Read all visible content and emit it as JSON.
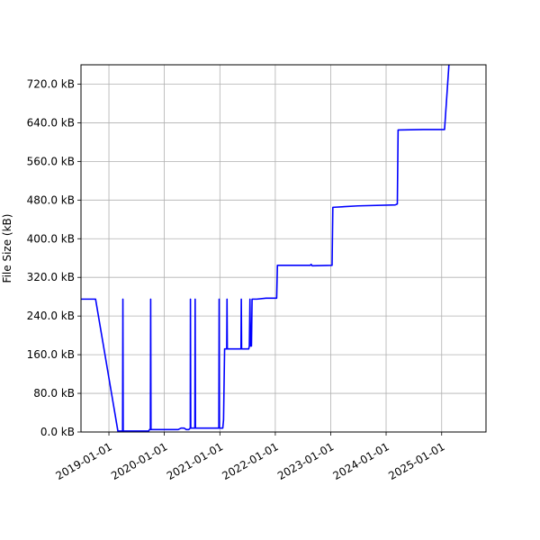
{
  "chart_data": {
    "type": "line",
    "title": "",
    "xlabel": "",
    "ylabel": "File Size (kB)",
    "grid": true,
    "xlim": [
      "2018-07-01",
      "2025-10-20"
    ],
    "ylim": [
      0,
      760
    ],
    "x_ticks": [
      "2019-01-01",
      "2020-01-01",
      "2021-01-01",
      "2022-01-01",
      "2023-01-01",
      "2024-01-01",
      "2025-01-01"
    ],
    "y_ticks": [
      {
        "value": 0,
        "label": "0.0 kB"
      },
      {
        "value": 80,
        "label": "80.0 kB"
      },
      {
        "value": 160,
        "label": "160.0 kB"
      },
      {
        "value": 240,
        "label": "240.0 kB"
      },
      {
        "value": 320,
        "label": "320.0 kB"
      },
      {
        "value": 400,
        "label": "400.0 kB"
      },
      {
        "value": 480,
        "label": "480.0 kB"
      },
      {
        "value": 560,
        "label": "560.0 kB"
      },
      {
        "value": 640,
        "label": "640.0 kB"
      },
      {
        "value": 720,
        "label": "720.0 kB"
      }
    ],
    "series": [
      {
        "color": "#0000ff",
        "points": [
          [
            "2018-07-01",
            275
          ],
          [
            "2018-10-05",
            275
          ],
          [
            "2019-03-01",
            2
          ],
          [
            "2019-04-01",
            2
          ],
          [
            "2019-04-03",
            275
          ],
          [
            "2019-04-05",
            2
          ],
          [
            "2019-09-20",
            2
          ],
          [
            "2019-09-25",
            5
          ],
          [
            "2019-10-01",
            5
          ],
          [
            "2019-10-03",
            275
          ],
          [
            "2019-10-05",
            5
          ],
          [
            "2020-04-01",
            5
          ],
          [
            "2020-04-20",
            8
          ],
          [
            "2020-05-10",
            8
          ],
          [
            "2020-05-25",
            5
          ],
          [
            "2020-06-10",
            5
          ],
          [
            "2020-06-20",
            8
          ],
          [
            "2020-06-21",
            275
          ],
          [
            "2020-06-23",
            8
          ],
          [
            "2020-07-20",
            8
          ],
          [
            "2020-07-22",
            275
          ],
          [
            "2020-07-24",
            8
          ],
          [
            "2020-12-25",
            8
          ],
          [
            "2020-12-27",
            275
          ],
          [
            "2020-12-29",
            8
          ],
          [
            "2021-01-20",
            8
          ],
          [
            "2021-01-25",
            25
          ],
          [
            "2021-02-01",
            172
          ],
          [
            "2021-02-15",
            172
          ],
          [
            "2021-02-17",
            275
          ],
          [
            "2021-02-19",
            172
          ],
          [
            "2021-05-20",
            172
          ],
          [
            "2021-05-22",
            275
          ],
          [
            "2021-05-24",
            172
          ],
          [
            "2021-07-10",
            172
          ],
          [
            "2021-07-14",
            178
          ],
          [
            "2021-07-18",
            275
          ],
          [
            "2021-07-22",
            178
          ],
          [
            "2021-07-28",
            178
          ],
          [
            "2021-08-01",
            275
          ],
          [
            "2021-09-01",
            275
          ],
          [
            "2021-11-01",
            277
          ],
          [
            "2022-01-10",
            277
          ],
          [
            "2022-01-15",
            345
          ],
          [
            "2022-08-20",
            345
          ],
          [
            "2022-08-25",
            347
          ],
          [
            "2022-09-01",
            344
          ],
          [
            "2023-01-10",
            345
          ],
          [
            "2023-01-15",
            465
          ],
          [
            "2023-07-01",
            468
          ],
          [
            "2024-03-01",
            470
          ],
          [
            "2024-03-15",
            472
          ],
          [
            "2024-03-20",
            625
          ],
          [
            "2024-09-01",
            626
          ],
          [
            "2025-01-20",
            626
          ],
          [
            "2025-02-20",
            770
          ],
          [
            "2025-03-15",
            765
          ],
          [
            "2025-10-20",
            765
          ]
        ]
      }
    ]
  }
}
